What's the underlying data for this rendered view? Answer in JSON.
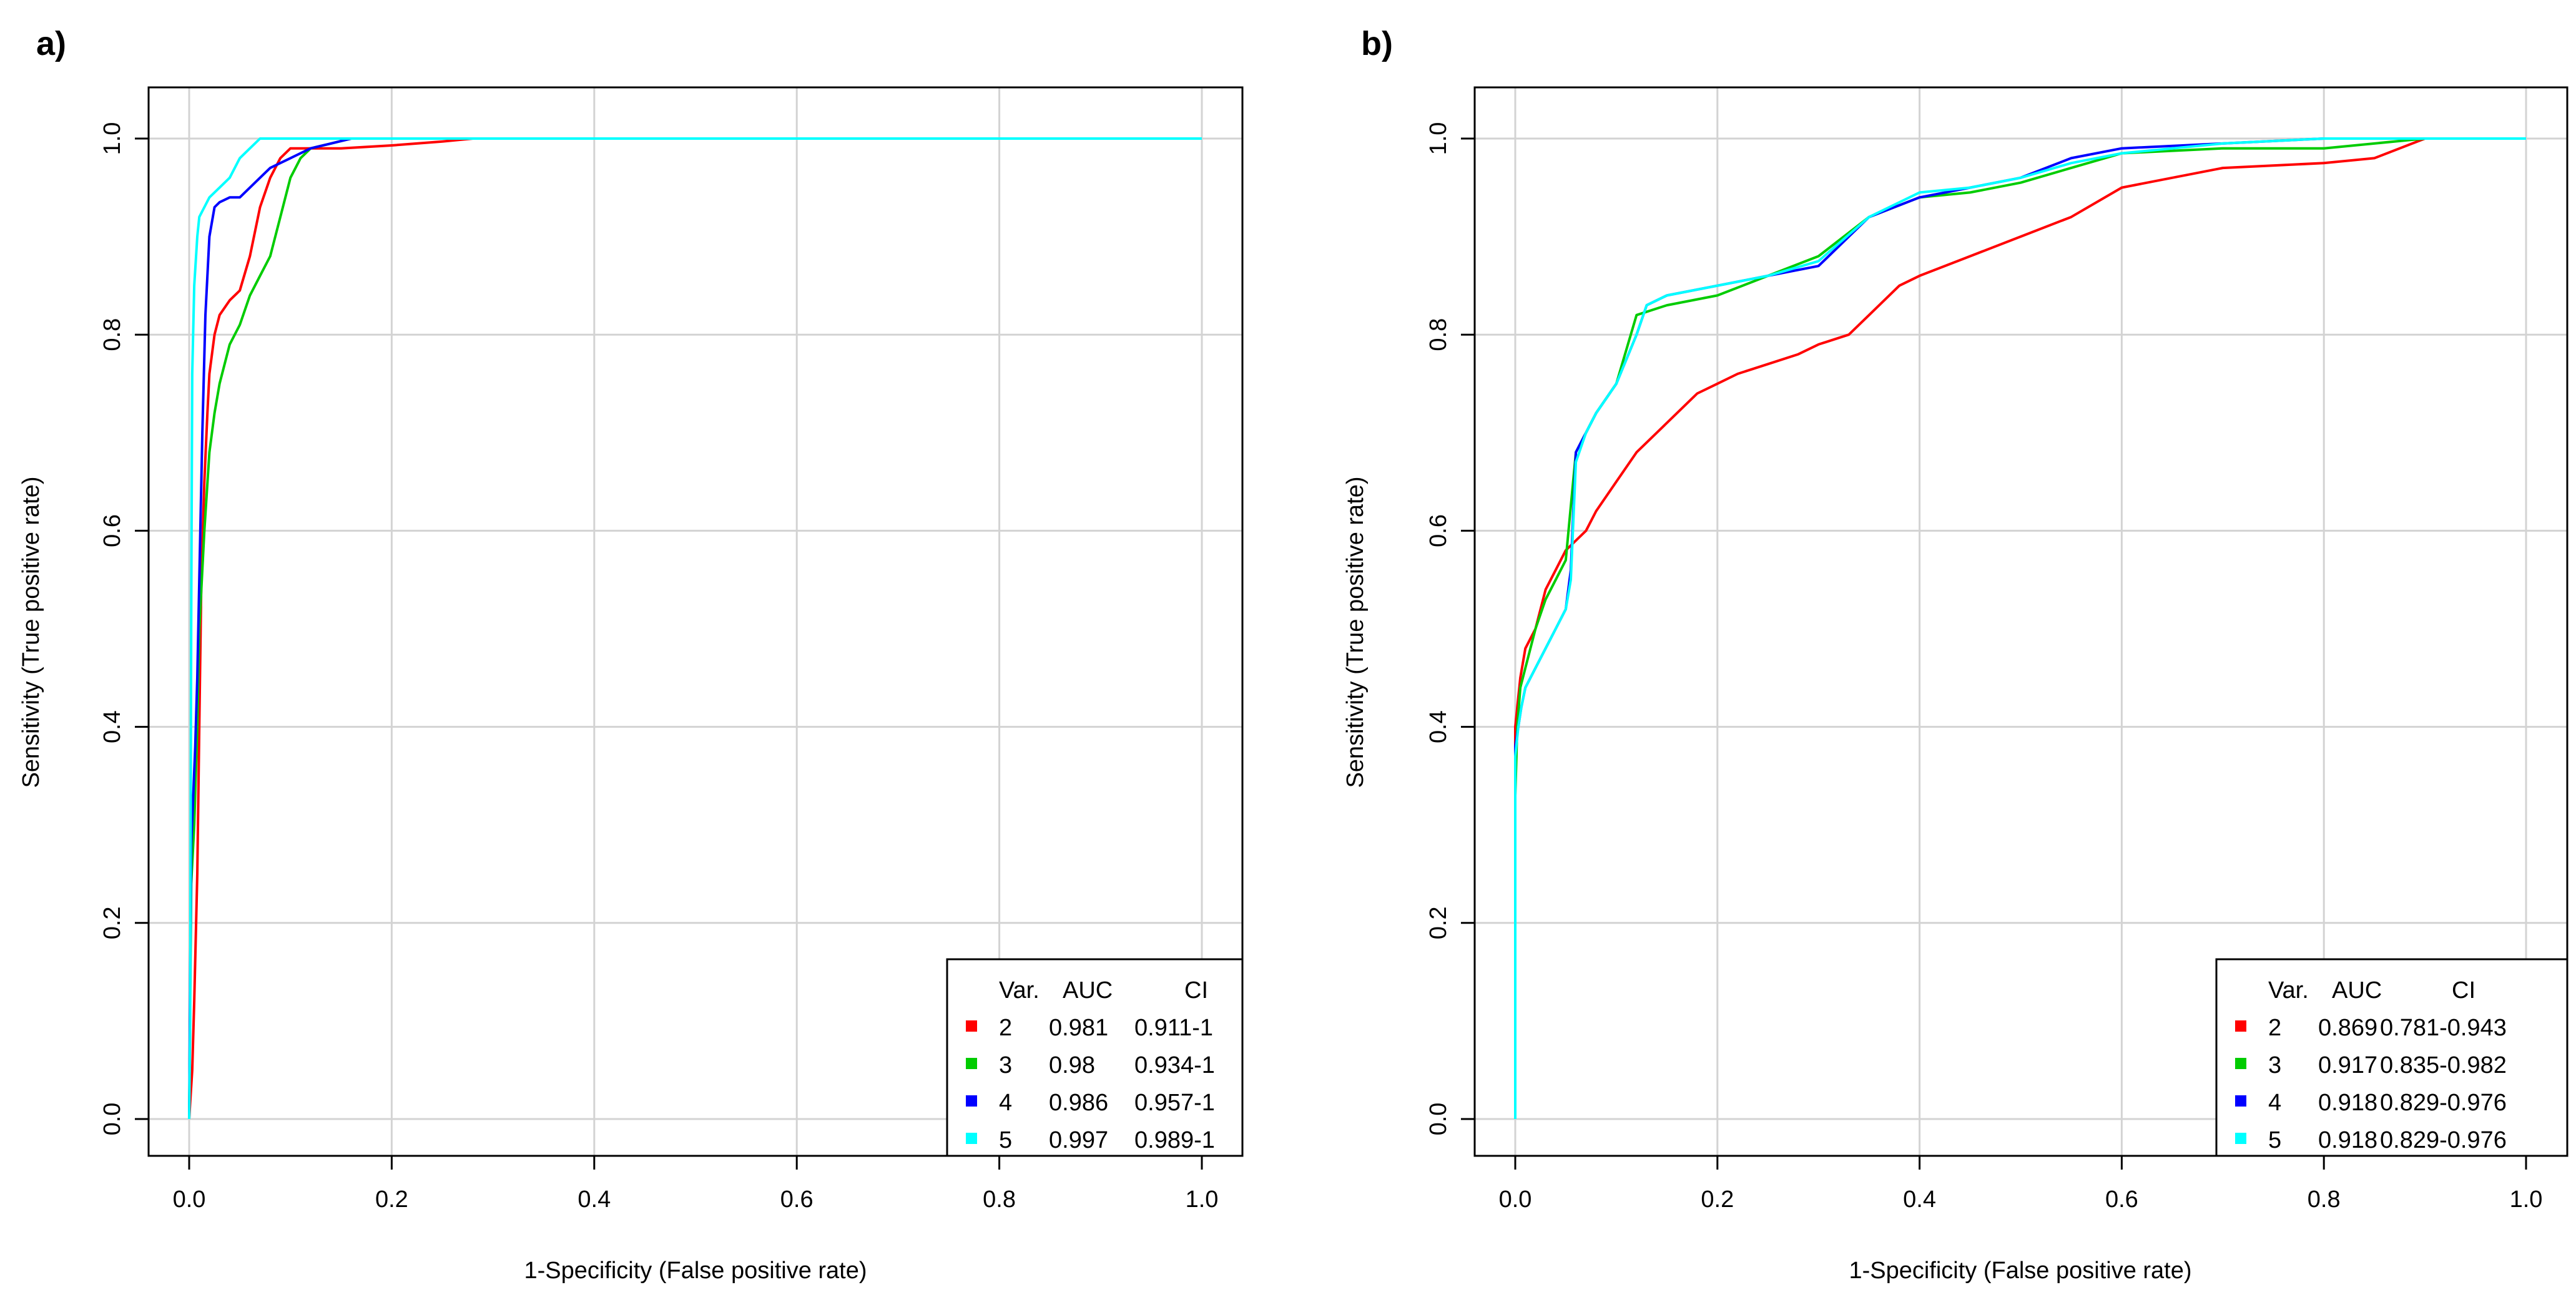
{
  "chart_data": [
    {
      "type": "line",
      "panel_label": "a)",
      "xlabel": "1-Specificity (False positive rate)",
      "ylabel": "Sensitivity (True positive rate)",
      "xlim": [
        0,
        1
      ],
      "ylim": [
        0,
        1
      ],
      "xticks": [
        "0.0",
        "0.2",
        "0.4",
        "0.6",
        "0.8",
        "1.0"
      ],
      "yticks": [
        "0.0",
        "0.2",
        "0.4",
        "0.6",
        "0.8",
        "1.0"
      ],
      "grid": true,
      "legend_position": "bottom-right",
      "legend_header": {
        "var": "Var.",
        "auc": "AUC",
        "ci": "CI"
      },
      "series": [
        {
          "name": "2",
          "auc": "0.981",
          "ci": "0.911-1",
          "color": "#ff0000",
          "x": [
            0,
            0.003,
            0.005,
            0.008,
            0.01,
            0.012,
            0.015,
            0.018,
            0.02,
            0.025,
            0.03,
            0.04,
            0.05,
            0.06,
            0.07,
            0.08,
            0.09,
            0.1,
            0.12,
            0.15,
            0.2,
            0.25,
            0.28,
            1.0
          ],
          "y": [
            0,
            0.05,
            0.12,
            0.25,
            0.4,
            0.55,
            0.65,
            0.72,
            0.76,
            0.8,
            0.82,
            0.835,
            0.845,
            0.88,
            0.93,
            0.96,
            0.98,
            0.99,
            0.99,
            0.99,
            0.993,
            0.997,
            1.0,
            1.0
          ]
        },
        {
          "name": "3",
          "auc": "0.98",
          "ci": "0.934-1",
          "color": "#00cc00",
          "x": [
            0,
            0.002,
            0.005,
            0.008,
            0.01,
            0.015,
            0.02,
            0.025,
            0.03,
            0.04,
            0.05,
            0.06,
            0.07,
            0.08,
            0.09,
            0.1,
            0.11,
            0.12,
            0.14,
            0.16,
            0.2,
            1.0
          ],
          "y": [
            0,
            0.24,
            0.3,
            0.4,
            0.5,
            0.6,
            0.68,
            0.72,
            0.75,
            0.79,
            0.81,
            0.84,
            0.86,
            0.88,
            0.92,
            0.96,
            0.98,
            0.99,
            0.995,
            1.0,
            1.0,
            1.0
          ]
        },
        {
          "name": "4",
          "auc": "0.986",
          "ci": "0.957-1",
          "color": "#0000ff",
          "x": [
            0,
            0.002,
            0.004,
            0.006,
            0.008,
            0.01,
            0.013,
            0.016,
            0.02,
            0.025,
            0.03,
            0.04,
            0.05,
            0.06,
            0.07,
            0.08,
            0.1,
            0.12,
            0.14,
            0.16,
            1.0
          ],
          "y": [
            0,
            0.28,
            0.33,
            0.38,
            0.45,
            0.55,
            0.7,
            0.82,
            0.9,
            0.93,
            0.935,
            0.94,
            0.94,
            0.95,
            0.96,
            0.97,
            0.98,
            0.99,
            0.995,
            1.0,
            1.0
          ]
        },
        {
          "name": "5",
          "auc": "0.997",
          "ci": "0.989-1",
          "color": "#00ffff",
          "x": [
            0,
            0.001,
            0.002,
            0.003,
            0.005,
            0.008,
            0.01,
            0.015,
            0.02,
            0.03,
            0.04,
            0.05,
            0.06,
            0.07,
            0.08,
            0.1,
            1.0
          ],
          "y": [
            0,
            0.1,
            0.5,
            0.76,
            0.85,
            0.9,
            0.92,
            0.93,
            0.94,
            0.95,
            0.96,
            0.98,
            0.99,
            1.0,
            1.0,
            1.0,
            1.0
          ]
        }
      ]
    },
    {
      "type": "line",
      "panel_label": "b)",
      "xlabel": "1-Specificity (False positive rate)",
      "ylabel": "Sensitivity (True positive rate)",
      "xlim": [
        0,
        1
      ],
      "ylim": [
        0,
        1
      ],
      "xticks": [
        "0.0",
        "0.2",
        "0.4",
        "0.6",
        "0.8",
        "1.0"
      ],
      "yticks": [
        "0.0",
        "0.2",
        "0.4",
        "0.6",
        "0.8",
        "1.0"
      ],
      "grid": true,
      "legend_position": "bottom-right",
      "legend_header": {
        "var": "Var.",
        "auc": "AUC",
        "ci": "CI"
      },
      "series": [
        {
          "name": "2",
          "auc": "0.869",
          "ci": "0.781-0.943",
          "color": "#ff0000",
          "x": [
            0,
            0.0,
            0.005,
            0.01,
            0.02,
            0.03,
            0.04,
            0.05,
            0.07,
            0.08,
            0.1,
            0.12,
            0.14,
            0.16,
            0.18,
            0.2,
            0.22,
            0.25,
            0.28,
            0.3,
            0.33,
            0.35,
            0.38,
            0.4,
            0.45,
            0.5,
            0.55,
            0.6,
            0.7,
            0.8,
            0.85,
            0.9,
            1.0
          ],
          "y": [
            0,
            0.4,
            0.45,
            0.48,
            0.5,
            0.54,
            0.56,
            0.58,
            0.6,
            0.62,
            0.65,
            0.68,
            0.7,
            0.72,
            0.74,
            0.75,
            0.76,
            0.77,
            0.78,
            0.79,
            0.8,
            0.82,
            0.85,
            0.86,
            0.88,
            0.9,
            0.92,
            0.95,
            0.97,
            0.975,
            0.98,
            1.0,
            1.0
          ]
        },
        {
          "name": "3",
          "auc": "0.917",
          "ci": "0.835-0.982",
          "color": "#00cc00",
          "x": [
            0,
            0.0,
            0.002,
            0.005,
            0.01,
            0.02,
            0.03,
            0.04,
            0.05,
            0.06,
            0.07,
            0.08,
            0.1,
            0.12,
            0.15,
            0.2,
            0.25,
            0.3,
            0.35,
            0.4,
            0.45,
            0.5,
            0.55,
            0.6,
            0.7,
            0.8,
            0.9,
            1.0
          ],
          "y": [
            0,
            0.33,
            0.4,
            0.44,
            0.46,
            0.5,
            0.53,
            0.55,
            0.57,
            0.68,
            0.7,
            0.72,
            0.75,
            0.82,
            0.83,
            0.84,
            0.86,
            0.88,
            0.92,
            0.94,
            0.945,
            0.955,
            0.97,
            0.985,
            0.99,
            0.99,
            1.0,
            1.0
          ]
        },
        {
          "name": "4",
          "auc": "0.918",
          "ci": "0.829-0.976",
          "color": "#0000ff",
          "x": [
            0,
            0.0,
            0.003,
            0.006,
            0.01,
            0.02,
            0.03,
            0.04,
            0.05,
            0.055,
            0.06,
            0.07,
            0.08,
            0.1,
            0.12,
            0.13,
            0.15,
            0.2,
            0.25,
            0.3,
            0.35,
            0.4,
            0.45,
            0.5,
            0.55,
            0.6,
            0.7,
            0.8,
            0.9,
            1.0
          ],
          "y": [
            0,
            0.38,
            0.4,
            0.42,
            0.44,
            0.46,
            0.48,
            0.5,
            0.52,
            0.56,
            0.68,
            0.7,
            0.72,
            0.75,
            0.8,
            0.83,
            0.84,
            0.85,
            0.86,
            0.87,
            0.92,
            0.94,
            0.95,
            0.96,
            0.98,
            0.99,
            0.995,
            1.0,
            1.0,
            1.0
          ]
        },
        {
          "name": "5",
          "auc": "0.918",
          "ci": "0.829-0.976",
          "color": "#00ffff",
          "x": [
            0,
            0.0,
            0.003,
            0.006,
            0.01,
            0.02,
            0.03,
            0.04,
            0.05,
            0.055,
            0.06,
            0.07,
            0.08,
            0.1,
            0.12,
            0.13,
            0.15,
            0.2,
            0.25,
            0.3,
            0.35,
            0.4,
            0.45,
            0.5,
            0.55,
            0.6,
            0.7,
            0.8,
            0.9,
            1.0
          ],
          "y": [
            0,
            0.37,
            0.4,
            0.42,
            0.44,
            0.46,
            0.48,
            0.5,
            0.52,
            0.55,
            0.67,
            0.7,
            0.72,
            0.75,
            0.8,
            0.83,
            0.84,
            0.85,
            0.86,
            0.875,
            0.92,
            0.945,
            0.95,
            0.96,
            0.975,
            0.985,
            0.995,
            1.0,
            1.0,
            1.0
          ]
        }
      ]
    }
  ]
}
